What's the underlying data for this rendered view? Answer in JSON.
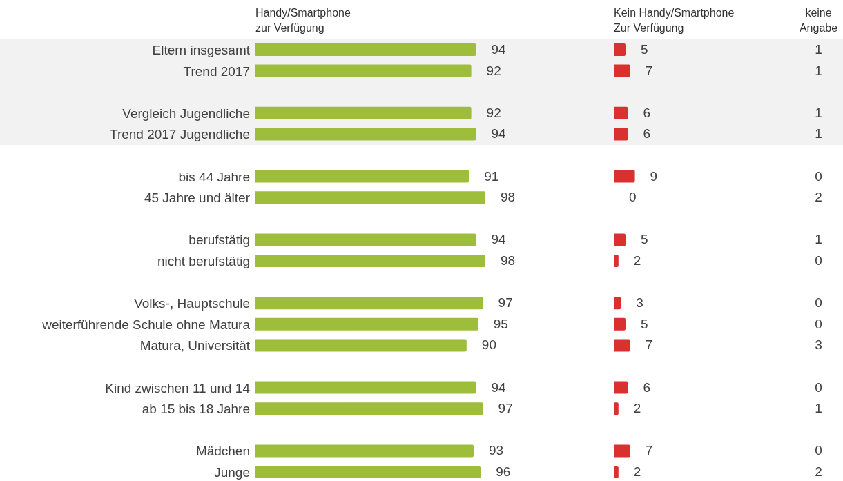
{
  "chart_data": [
    {
      "type": "bar",
      "orientation": "horizontal",
      "data_labels": true,
      "tick_labels": "y",
      "title": "Handy/Smartphone\nzur Verfügung",
      "categories": [
        "Eltern insgesamt",
        "Trend 2017",
        null,
        "Vergleich Jugendliche",
        "Trend 2017 Jugendliche",
        null,
        "bis 44 Jahre",
        "45 Jahre und älter",
        null,
        "berufstätig",
        "nicht berufstätig",
        null,
        "Volks-, Hauptschule",
        "weiterführende Schule ohne Matura",
        "Matura, Universität",
        null,
        "Kind zwischen 11 und 14",
        "ab 15 bis 18 Jahre",
        null,
        "Mädchen",
        "Junge"
      ],
      "values": [
        94,
        92,
        null,
        92,
        94,
        null,
        91,
        98,
        null,
        94,
        98,
        null,
        97,
        95,
        90,
        null,
        94,
        97,
        null,
        93,
        96
      ],
      "color": "#9dbd3b",
      "bands": [
        {
          "axis": "y",
          "from": "Eltern insgesamt",
          "to": "Trend 2017 Jugendliche",
          "color": "#f2f2f2"
        }
      ]
    },
    {
      "type": "bar",
      "orientation": "horizontal",
      "data_labels": true,
      "tick_labels": false,
      "title": "Kein Handy/Smartphone\nZur Verfügung",
      "values": [
        5,
        7,
        null,
        6,
        6,
        null,
        9,
        0,
        null,
        5,
        2,
        null,
        3,
        5,
        7,
        null,
        6,
        2,
        null,
        7,
        2
      ],
      "color": "#d93030"
    },
    {
      "type": "other",
      "data_labels": true,
      "title": "keine\nAngabe",
      "values": [
        1,
        1,
        null,
        1,
        1,
        null,
        0,
        2,
        null,
        1,
        0,
        null,
        0,
        0,
        3,
        null,
        0,
        1,
        null,
        0,
        2
      ]
    }
  ]
}
